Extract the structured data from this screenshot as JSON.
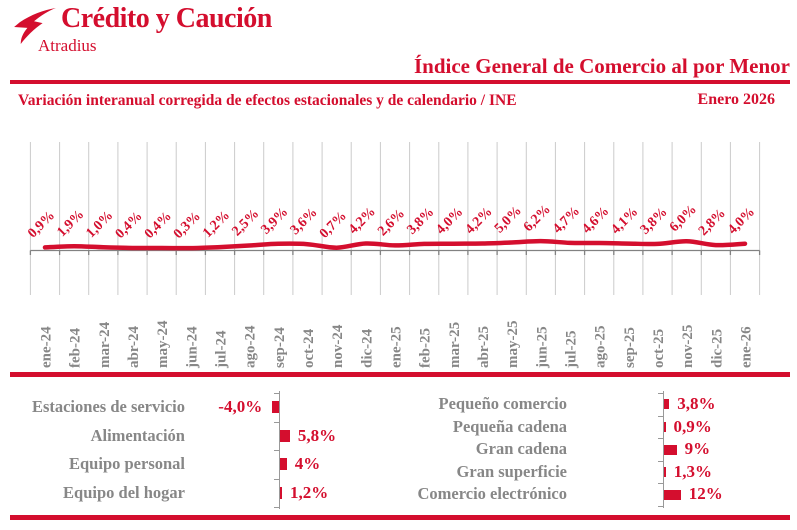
{
  "brand": {
    "name": "Crédito y Caución",
    "subname": "Atradius"
  },
  "header": {
    "title": "Índice General de Comercio al por Menor",
    "subtitle": "Variación interanual corregida de efectos estacionales y de calendario / INE",
    "period": "Enero 2026"
  },
  "colors": {
    "brand_red": "#d40e2e",
    "text_gray": "#878787",
    "grid_gray": "#cbcbcb",
    "axis_gray": "#828282",
    "tick_gray": "#999999"
  },
  "chart_data": [
    {
      "type": "line",
      "title": "Índice General de Comercio al por Menor",
      "subtitle": "Variación interanual corregida de efectos estacionales y de calendario / INE",
      "unit": "%",
      "grid": "vertical-only",
      "legend": "none",
      "line_color": "#d40e2e",
      "x": [
        "ene-24",
        "feb-24",
        "mar-24",
        "abr-24",
        "may-24",
        "jun-24",
        "jul-24",
        "ago-24",
        "sep-24",
        "oct-24",
        "nov-24",
        "dic-24",
        "ene-25",
        "feb-25",
        "mar-25",
        "abr-25",
        "may-25",
        "jun-25",
        "jul-25",
        "ago-25",
        "sep-25",
        "oct-25",
        "nov-25",
        "dic-25",
        "ene-26"
      ],
      "values": [
        0.9,
        1.9,
        1.0,
        0.4,
        0.4,
        0.3,
        1.2,
        2.5,
        3.9,
        3.6,
        0.7,
        4.2,
        2.6,
        3.8,
        4.0,
        4.2,
        5.0,
        6.2,
        4.7,
        4.6,
        4.1,
        3.8,
        6.0,
        2.8,
        4.0
      ],
      "point_labels": [
        "0,9%",
        "1,9%",
        "1,0%",
        "0,4%",
        "0,4%",
        "0,3%",
        "1,2%",
        "2,5%",
        "3,9%",
        "3,6%",
        "0,7%",
        "4,2%",
        "2,6%",
        "3,8%",
        "4,0%",
        "4,2%",
        "5,0%",
        "6,2%",
        "4,7%",
        "4,6%",
        "4,1%",
        "3,8%",
        "6,0%",
        "2,8%",
        "4,0%"
      ]
    },
    {
      "type": "bar",
      "orientation": "horizontal",
      "title": "",
      "unit": "%",
      "bar_color": "#d40e2e",
      "categories": [
        "Estaciones de servicio",
        "Alimentación",
        "Equipo personal",
        "Equipo del hogar"
      ],
      "values": [
        -4.0,
        5.8,
        4.0,
        1.2
      ],
      "value_labels": [
        "-4,0%",
        "5,8%",
        "4%",
        "1,2%"
      ]
    },
    {
      "type": "bar",
      "orientation": "horizontal",
      "title": "",
      "unit": "%",
      "bar_color": "#d40e2e",
      "categories": [
        "Pequeño comercio",
        "Pequeña cadena",
        "Gran cadena",
        "Gran superficie",
        "Comercio electrónico"
      ],
      "values": [
        3.8,
        0.9,
        9.0,
        1.3,
        12.0
      ],
      "value_labels": [
        "3,8%",
        "0,9%",
        "9%",
        "1,3%",
        "12%"
      ]
    }
  ]
}
